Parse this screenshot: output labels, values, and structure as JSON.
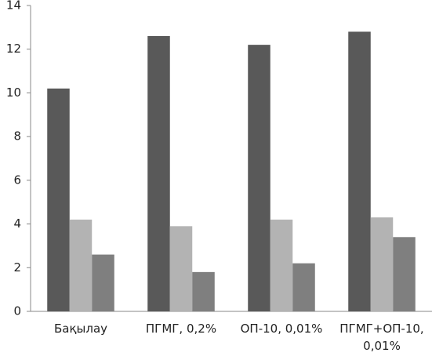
{
  "chart_data": {
    "type": "bar",
    "categories": [
      "Бақылау",
      "ПГМГ, 0,2%",
      "ОП-10, 0,01%",
      "ПГМГ+ОП-10, 0,01%"
    ],
    "series": [
      {
        "color": "#595959",
        "values": [
          10.2,
          12.6,
          12.2,
          12.8
        ]
      },
      {
        "color": "#b3b3b3",
        "values": [
          4.2,
          3.9,
          4.2,
          4.3
        ]
      },
      {
        "color": "#7f7f7f",
        "values": [
          2.6,
          1.8,
          2.2,
          3.4
        ]
      }
    ],
    "ylim": [
      0,
      14
    ],
    "yticks": [
      0,
      2,
      4,
      6,
      8,
      10,
      12,
      14
    ],
    "grid": false
  }
}
